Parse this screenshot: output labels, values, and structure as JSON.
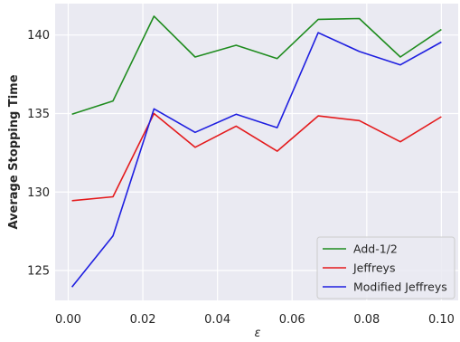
{
  "chart_data": {
    "type": "line",
    "xlabel": "ε",
    "ylabel": "Average Stopping Time",
    "x": [
      0.001,
      0.012,
      0.023,
      0.034,
      0.045,
      0.056,
      0.067,
      0.078,
      0.089,
      0.1
    ],
    "xlim": [
      -0.0035,
      0.1045
    ],
    "ylim": [
      123.1,
      142.0
    ],
    "xticks": [
      0.0,
      0.02,
      0.04,
      0.06,
      0.08,
      0.1
    ],
    "xtick_labels": [
      "0.00",
      "0.02",
      "0.04",
      "0.06",
      "0.08",
      "0.10"
    ],
    "yticks": [
      125,
      130,
      135,
      140
    ],
    "ytick_labels": [
      "125",
      "130",
      "135",
      "140"
    ],
    "grid": true,
    "legend_position": "lower-right",
    "series": [
      {
        "name": "Add-1/2",
        "color": "#1f8c1f",
        "values": [
          134.95,
          135.8,
          141.2,
          138.6,
          139.35,
          138.5,
          141.0,
          141.05,
          138.6,
          140.35
        ]
      },
      {
        "name": "Jeffreys",
        "color": "#e41a1c",
        "values": [
          129.45,
          129.7,
          135.0,
          132.85,
          134.2,
          132.6,
          134.85,
          134.55,
          133.2,
          134.8
        ]
      },
      {
        "name": "Modified Jeffreys",
        "color": "#1f1fe0",
        "values": [
          123.95,
          127.2,
          135.3,
          133.8,
          134.95,
          134.1,
          140.15,
          138.95,
          138.1,
          139.55
        ]
      }
    ]
  }
}
